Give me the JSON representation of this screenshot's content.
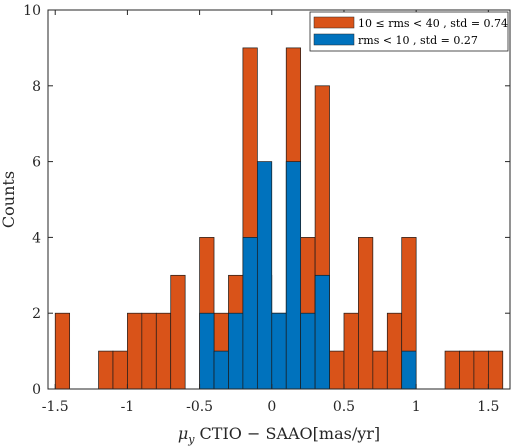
{
  "chart_data": {
    "type": "bar",
    "stacked": false,
    "bin_width": 0.1,
    "xlim": [
      -1.55,
      1.65
    ],
    "ylim": [
      0,
      10
    ],
    "xticks": [
      -1.5,
      -1,
      -0.5,
      0,
      0.5,
      1,
      1.5
    ],
    "xtick_labels": [
      "-1.5",
      "-1",
      "-0.5",
      "0",
      "0.5",
      "1",
      "1.5"
    ],
    "yticks": [
      0,
      2,
      4,
      6,
      8,
      10
    ],
    "ytick_labels": [
      "0",
      "2",
      "4",
      "6",
      "8",
      "10"
    ],
    "xlabel_symbol": "μ",
    "xlabel_subscript": "y",
    "xlabel": " CTIO − SAAO[mas/yr]",
    "ylabel": "Counts",
    "grid": false,
    "legend_position": "top-right",
    "bin_centers": [
      -1.45,
      -1.35,
      -1.25,
      -1.15,
      -1.05,
      -0.95,
      -0.85,
      -0.75,
      -0.65,
      -0.55,
      -0.45,
      -0.35,
      -0.25,
      -0.15,
      -0.05,
      0.05,
      0.15,
      0.25,
      0.35,
      0.45,
      0.55,
      0.65,
      0.75,
      0.85,
      0.95,
      1.05,
      1.15,
      1.25,
      1.35,
      1.45,
      1.55
    ],
    "series": [
      {
        "name": "10 ≤ rms < 40 , std = 0.74",
        "color": "#d95319",
        "values": [
          2,
          0,
          0,
          1,
          1,
          2,
          2,
          2,
          3,
          0,
          4,
          2,
          3,
          9,
          3,
          2,
          9,
          4,
          8,
          1,
          2,
          4,
          1,
          2,
          4,
          0,
          0,
          1,
          1,
          1,
          1
        ]
      },
      {
        "name": "rms < 10 , std = 0.27",
        "color": "#0072bd",
        "values": [
          0,
          0,
          0,
          0,
          0,
          0,
          0,
          0,
          0,
          0,
          2,
          1,
          2,
          4,
          6,
          2,
          6,
          2,
          3,
          0,
          0,
          0,
          0,
          0,
          1,
          0,
          0,
          0,
          0,
          0,
          0
        ]
      }
    ]
  }
}
